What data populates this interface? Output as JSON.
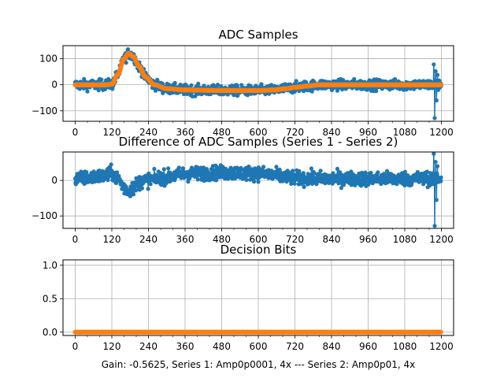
{
  "chart_data": [
    {
      "type": "line",
      "title": "ADC Samples",
      "xlim": [
        -40,
        1240
      ],
      "ylim": [
        -140,
        150
      ],
      "xticks": [
        0,
        120,
        240,
        360,
        480,
        600,
        720,
        840,
        960,
        1080,
        1200
      ],
      "yticks": [
        100,
        0,
        -100
      ],
      "grid": true,
      "series": [
        {
          "name": "Series 1",
          "color": "#1f77b4",
          "description": "noisy samples (~±20) following Series 2; spike near 1180",
          "n": 1200,
          "noise": 14,
          "spikes": [
            [
              1175,
              78
            ],
            [
              1178,
              -128
            ],
            [
              1181,
              52
            ],
            [
              1184,
              -60
            ],
            [
              1187,
              38
            ]
          ]
        },
        {
          "name": "Series 2",
          "color": "#ff7f0e",
          "description": "smooth reference curve",
          "n": 1200,
          "x": [
            0,
            100,
            120,
            140,
            160,
            175,
            190,
            210,
            230,
            260,
            300,
            360,
            480,
            600,
            650,
            690,
            720,
            760,
            800,
            1200
          ],
          "y": [
            0,
            0,
            2,
            40,
            100,
            120,
            108,
            70,
            30,
            0,
            -15,
            -20,
            -22,
            -22,
            -20,
            -15,
            -10,
            -5,
            0,
            0
          ]
        }
      ]
    },
    {
      "type": "line",
      "title": "Difference of ADC Samples (Series 1 - Series 2)",
      "xlim": [
        -40,
        1240
      ],
      "ylim": [
        -135,
        80
      ],
      "xticks": [
        0,
        120,
        240,
        360,
        480,
        600,
        720,
        840,
        960,
        1080,
        1200
      ],
      "yticks": [
        0,
        -100
      ],
      "grid": true,
      "series": [
        {
          "name": "Difference",
          "color": "#1f77b4",
          "n": 1200,
          "noise": 14,
          "x": [
            0,
            100,
            120,
            140,
            160,
            175,
            190,
            210,
            240,
            300,
            360,
            480,
            600,
            650,
            700,
            760,
            840,
            1200
          ],
          "y": [
            5,
            12,
            20,
            5,
            -20,
            -30,
            -20,
            -5,
            2,
            10,
            18,
            22,
            20,
            15,
            8,
            6,
            5,
            5
          ],
          "spikes": [
            [
              1175,
              75
            ],
            [
              1178,
              -128
            ],
            [
              1181,
              52
            ],
            [
              1184,
              -55
            ],
            [
              1187,
              40
            ]
          ]
        }
      ]
    },
    {
      "type": "scatter",
      "title": "Decision Bits",
      "xlim": [
        -40,
        1240
      ],
      "ylim": [
        -0.05,
        1.08
      ],
      "xticks": [
        0,
        120,
        240,
        360,
        480,
        600,
        720,
        840,
        960,
        1080,
        1200
      ],
      "yticks": [
        1.0,
        0.5,
        0.0
      ],
      "grid": true,
      "xlabel": "Gain: -0.5625, Series 1: Amp0p0001, 4x --- Series 2: Amp0p01, 4x",
      "series": [
        {
          "name": "Series 1",
          "color": "#1f77b4",
          "n": 1200,
          "constant": 0
        },
        {
          "name": "Series 2",
          "color": "#ff7f0e",
          "n": 1200,
          "constant": 0
        }
      ]
    }
  ]
}
